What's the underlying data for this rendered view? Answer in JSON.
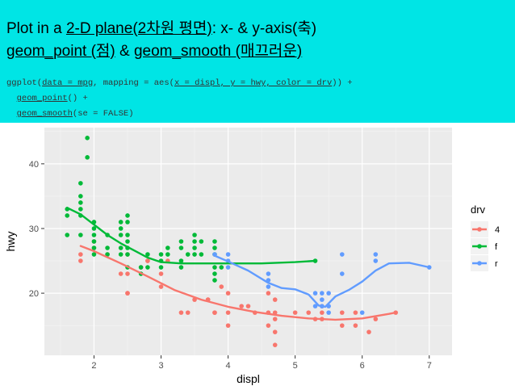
{
  "slide": {
    "line1": {
      "prefix": "Plot in a ",
      "link": "2-D plane(2차원 평면)",
      "suffix": ": x- & y-axis(축)"
    },
    "line2": {
      "link1": "geom_point (점)",
      "mid": " & ",
      "link2": "geom_smooth (매끄러운)"
    },
    "code": {
      "l1_a": "ggplot(",
      "l1_b": "data = mpg",
      "l1_c": ", mapping = aes(",
      "l1_d": "x = displ, y = hwy, color = drv",
      "l1_e": ")) +",
      "l2_a": "  ",
      "l2_b": "geom_point",
      "l2_c": "() +",
      "l3_a": "  ",
      "l3_b": "geom_smooth",
      "l3_c": "(se = FALSE)"
    }
  },
  "colors": {
    "banner": "#00e5e5",
    "panel": "#ebebeb",
    "grid_major": "#ffffff",
    "grid_minor": "#f5f5f5",
    "drv_4": "#f8766d",
    "drv_f": "#00ba38",
    "drv_r": "#619cff"
  },
  "chart_data": {
    "type": "scatter",
    "xlabel": "displ",
    "ylabel": "hwy",
    "xlim": [
      1.26,
      7.34
    ],
    "ylim": [
      10.4,
      45.6
    ],
    "xticks": [
      2,
      3,
      4,
      5,
      6,
      7
    ],
    "yticks": [
      20,
      30,
      40
    ],
    "grid": true,
    "legend": {
      "title": "drv",
      "position": "right",
      "entries": [
        "4",
        "f",
        "r"
      ]
    },
    "series": [
      {
        "name": "4",
        "color": "#f8766d",
        "points": [
          [
            1.8,
            26
          ],
          [
            1.8,
            25
          ],
          [
            2.0,
            28
          ],
          [
            2.0,
            27
          ],
          [
            2.8,
            25
          ],
          [
            2.8,
            25
          ],
          [
            3.1,
            25
          ],
          [
            2.5,
            20
          ],
          [
            2.5,
            20
          ],
          [
            2.2,
            26
          ],
          [
            2.5,
            26
          ],
          [
            2.7,
            24
          ],
          [
            3.3,
            17
          ],
          [
            3.4,
            17
          ],
          [
            3.7,
            19
          ],
          [
            3.8,
            17
          ],
          [
            4.0,
            17
          ],
          [
            4.2,
            18
          ],
          [
            4.4,
            17
          ],
          [
            4.7,
            17
          ],
          [
            4.7,
            19
          ],
          [
            4.7,
            16
          ],
          [
            4.6,
            17
          ],
          [
            5.0,
            17
          ],
          [
            5.2,
            17
          ],
          [
            5.7,
            17
          ],
          [
            5.9,
            17
          ],
          [
            4.7,
            12
          ],
          [
            5.4,
            18
          ],
          [
            5.4,
            17
          ],
          [
            5.4,
            16
          ],
          [
            5.3,
            16
          ],
          [
            5.7,
            15
          ],
          [
            6.1,
            14
          ],
          [
            5.9,
            15
          ],
          [
            6.2,
            16
          ],
          [
            6.5,
            17
          ],
          [
            4.6,
            15
          ],
          [
            4.7,
            14
          ],
          [
            3.0,
            21
          ],
          [
            3.7,
            19
          ],
          [
            4.0,
            15
          ],
          [
            4.3,
            18
          ],
          [
            4.6,
            20
          ],
          [
            4.0,
            20
          ],
          [
            3.9,
            21
          ],
          [
            3.8,
            17
          ],
          [
            2.4,
            23
          ],
          [
            2.5,
            23
          ],
          [
            3.0,
            23
          ],
          [
            3.5,
            19
          ]
        ],
        "smooth": [
          [
            1.8,
            27.3
          ],
          [
            2.0,
            26.5
          ],
          [
            2.4,
            24.6
          ],
          [
            2.8,
            22.6
          ],
          [
            3.2,
            20.5
          ],
          [
            3.6,
            19.0
          ],
          [
            4.0,
            17.9
          ],
          [
            4.4,
            17.1
          ],
          [
            4.8,
            16.5
          ],
          [
            5.2,
            16.1
          ],
          [
            5.6,
            15.9
          ],
          [
            6.0,
            16.1
          ],
          [
            6.4,
            16.8
          ],
          [
            6.5,
            17.0
          ]
        ]
      },
      {
        "name": "f",
        "color": "#00ba38",
        "points": [
          [
            1.6,
            33
          ],
          [
            1.6,
            32
          ],
          [
            1.6,
            29
          ],
          [
            1.8,
            37
          ],
          [
            1.8,
            35
          ],
          [
            1.8,
            34
          ],
          [
            1.8,
            33
          ],
          [
            1.8,
            32
          ],
          [
            1.8,
            29
          ],
          [
            1.9,
            44
          ],
          [
            1.9,
            41
          ],
          [
            2.0,
            31
          ],
          [
            2.0,
            30
          ],
          [
            2.0,
            29
          ],
          [
            2.0,
            28
          ],
          [
            2.0,
            27
          ],
          [
            2.0,
            26
          ],
          [
            2.2,
            29
          ],
          [
            2.2,
            27
          ],
          [
            2.2,
            26
          ],
          [
            2.4,
            31
          ],
          [
            2.4,
            30
          ],
          [
            2.4,
            29
          ],
          [
            2.4,
            27
          ],
          [
            2.4,
            26
          ],
          [
            2.5,
            32
          ],
          [
            2.5,
            31
          ],
          [
            2.5,
            29
          ],
          [
            2.5,
            28
          ],
          [
            2.5,
            27
          ],
          [
            2.5,
            26
          ],
          [
            2.5,
            24
          ],
          [
            2.7,
            24
          ],
          [
            2.7,
            23
          ],
          [
            2.8,
            24
          ],
          [
            2.8,
            26
          ],
          [
            3.0,
            26
          ],
          [
            3.0,
            25
          ],
          [
            3.0,
            24
          ],
          [
            3.1,
            27
          ],
          [
            3.1,
            26
          ],
          [
            3.3,
            28
          ],
          [
            3.3,
            27
          ],
          [
            3.3,
            25
          ],
          [
            3.3,
            24
          ],
          [
            3.4,
            26
          ],
          [
            3.5,
            29
          ],
          [
            3.5,
            28
          ],
          [
            3.5,
            27
          ],
          [
            3.5,
            26
          ],
          [
            3.6,
            28
          ],
          [
            3.6,
            26
          ],
          [
            3.8,
            28
          ],
          [
            3.8,
            27
          ],
          [
            3.8,
            26
          ],
          [
            3.8,
            24
          ],
          [
            3.8,
            23
          ],
          [
            3.8,
            22
          ],
          [
            3.9,
            24
          ],
          [
            5.3,
            25
          ]
        ],
        "smooth": [
          [
            1.6,
            33.2
          ],
          [
            1.8,
            32.2
          ],
          [
            2.0,
            30.6
          ],
          [
            2.2,
            29.0
          ],
          [
            2.4,
            27.7
          ],
          [
            2.6,
            26.6
          ],
          [
            2.8,
            25.5
          ],
          [
            3.0,
            24.8
          ],
          [
            3.3,
            24.6
          ],
          [
            3.8,
            24.6
          ],
          [
            4.5,
            24.6
          ],
          [
            5.0,
            24.8
          ],
          [
            5.3,
            25.0
          ]
        ]
      },
      {
        "name": "r",
        "color": "#619cff",
        "points": [
          [
            3.8,
            26
          ],
          [
            4.0,
            25
          ],
          [
            4.0,
            26
          ],
          [
            4.0,
            24
          ],
          [
            4.6,
            23
          ],
          [
            4.6,
            22
          ],
          [
            4.6,
            21
          ],
          [
            5.4,
            20
          ],
          [
            5.4,
            19
          ],
          [
            5.4,
            18
          ],
          [
            5.3,
            20
          ],
          [
            5.3,
            18
          ],
          [
            5.5,
            20
          ],
          [
            5.5,
            18
          ],
          [
            5.5,
            17
          ],
          [
            5.7,
            26
          ],
          [
            5.7,
            23
          ],
          [
            6.0,
            17
          ],
          [
            6.2,
            26
          ],
          [
            6.2,
            25
          ],
          [
            7.0,
            24
          ]
        ],
        "smooth": [
          [
            3.8,
            25.8
          ],
          [
            4.0,
            24.9
          ],
          [
            4.3,
            23.5
          ],
          [
            4.6,
            21.6
          ],
          [
            4.8,
            20.8
          ],
          [
            5.0,
            20.6
          ],
          [
            5.2,
            19.8
          ],
          [
            5.35,
            18.1
          ],
          [
            5.45,
            17.9
          ],
          [
            5.6,
            19.5
          ],
          [
            5.8,
            20.5
          ],
          [
            6.0,
            21.8
          ],
          [
            6.2,
            23.5
          ],
          [
            6.4,
            24.6
          ],
          [
            6.7,
            24.7
          ],
          [
            7.0,
            24.0
          ]
        ]
      }
    ]
  }
}
